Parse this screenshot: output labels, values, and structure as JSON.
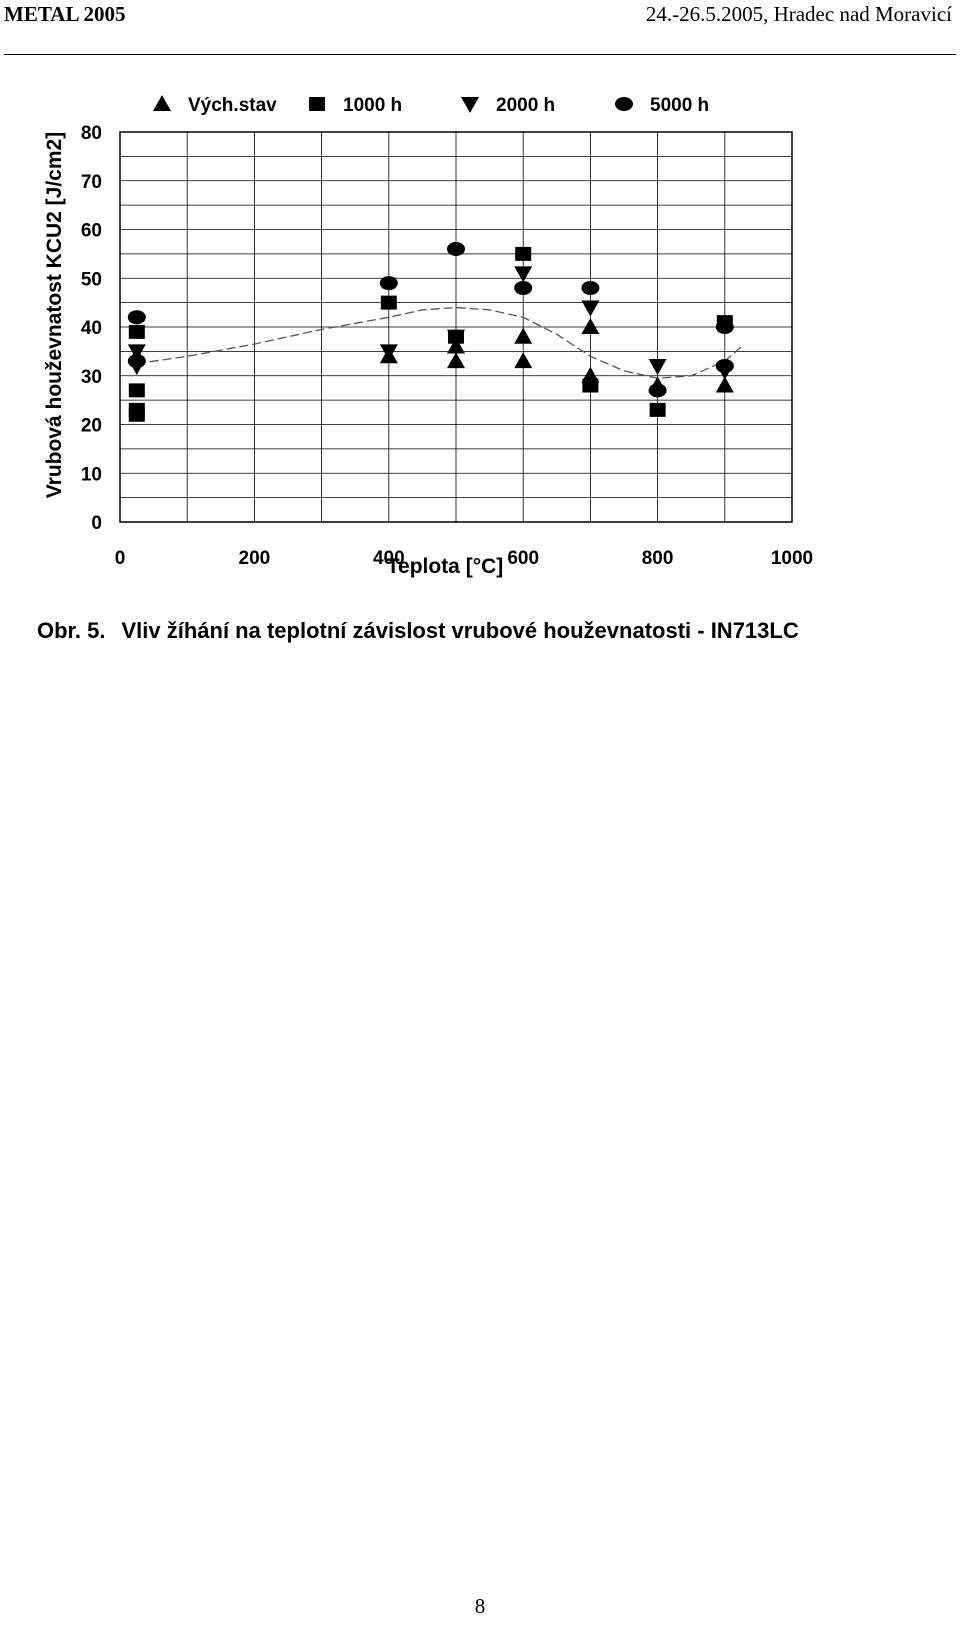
{
  "header": {
    "left": "METAL 2005",
    "right": "24.-26.5.2005, Hradec nad Moravicí"
  },
  "caption": {
    "number": "Obr. 5.",
    "text": "Vliv žíhání na teplotní závislost vrubové houževnatosti - IN713LC"
  },
  "page_number": "8",
  "chart_data": {
    "type": "scatter",
    "xlabel": "Teplota  [°C]",
    "ylabel": "Vrubová houževnatost KCU2  [J/cm2]",
    "xlim": [
      0,
      1000
    ],
    "ylim": [
      0,
      80
    ],
    "xticks": [
      0,
      200,
      400,
      600,
      800,
      1000
    ],
    "yticks": [
      0,
      10,
      20,
      30,
      40,
      50,
      60,
      70,
      80
    ],
    "grid": true,
    "legend_position": "top",
    "series": [
      {
        "name": "Vých.stav",
        "marker": "triangle-up",
        "points": [
          [
            25,
            34
          ],
          [
            400,
            34
          ],
          [
            500,
            33
          ],
          [
            500,
            36
          ],
          [
            600,
            33
          ],
          [
            600,
            38
          ],
          [
            700,
            30
          ],
          [
            700,
            40
          ],
          [
            800,
            28
          ],
          [
            900,
            28
          ]
        ]
      },
      {
        "name": "1000 h",
        "marker": "square",
        "points": [
          [
            25,
            22
          ],
          [
            25,
            23
          ],
          [
            25,
            27
          ],
          [
            25,
            39
          ],
          [
            400,
            45
          ],
          [
            500,
            38
          ],
          [
            600,
            55
          ],
          [
            700,
            28
          ],
          [
            800,
            23
          ],
          [
            900,
            41
          ]
        ]
      },
      {
        "name": "2000 h",
        "marker": "triangle-down",
        "points": [
          [
            25,
            32
          ],
          [
            25,
            35
          ],
          [
            400,
            35
          ],
          [
            500,
            38
          ],
          [
            600,
            51
          ],
          [
            700,
            44
          ],
          [
            800,
            32
          ],
          [
            900,
            31
          ]
        ]
      },
      {
        "name": "5000 h",
        "marker": "circle",
        "points": [
          [
            25,
            33
          ],
          [
            25,
            42
          ],
          [
            400,
            49
          ],
          [
            500,
            56
          ],
          [
            600,
            48
          ],
          [
            700,
            48
          ],
          [
            800,
            27
          ],
          [
            900,
            32
          ],
          [
            900,
            40
          ]
        ]
      }
    ],
    "trend_line": {
      "style": "dashed",
      "points": [
        [
          25,
          32.5
        ],
        [
          100,
          34
        ],
        [
          200,
          36.5
        ],
        [
          300,
          39.5
        ],
        [
          400,
          42
        ],
        [
          450,
          43.5
        ],
        [
          500,
          44
        ],
        [
          550,
          43.5
        ],
        [
          600,
          42
        ],
        [
          650,
          38.5
        ],
        [
          700,
          34
        ],
        [
          750,
          31
        ],
        [
          800,
          29.5
        ],
        [
          850,
          30
        ],
        [
          900,
          33
        ],
        [
          925,
          36
        ]
      ]
    },
    "colors": {
      "marker": "#000000",
      "grid": "#000000",
      "trend": "#555555"
    }
  }
}
